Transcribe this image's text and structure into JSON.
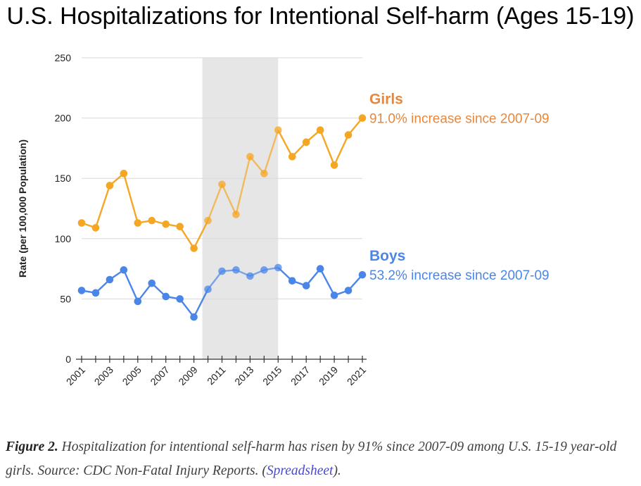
{
  "title": "U.S. Hospitalizations for Intentional Self-harm (Ages 15-19)",
  "chart_data": {
    "type": "line",
    "title": "U.S. Hospitalizations for Intentional Self-harm (Ages 15-19)",
    "xlabel": "",
    "ylabel": "Rate (per 100,000 Population)",
    "ylim": [
      0,
      250
    ],
    "y_ticks": [
      0,
      50,
      100,
      150,
      200,
      250
    ],
    "x": [
      2001,
      2002,
      2003,
      2004,
      2005,
      2006,
      2007,
      2008,
      2009,
      2010,
      2011,
      2012,
      2013,
      2014,
      2015,
      2016,
      2017,
      2018,
      2019,
      2020,
      2021
    ],
    "x_tick_labels": [
      "2001",
      "2003",
      "2005",
      "2007",
      "2009",
      "2011",
      "2013",
      "2015",
      "2017",
      "2019",
      "2021"
    ],
    "grid": "horizontal",
    "shaded_range": [
      2010,
      2015
    ],
    "series": [
      {
        "name": "Girls",
        "color": "#f5a623",
        "label_color": "#e8873a",
        "annotation": "91.0% increase since 2007-09",
        "values": [
          113,
          109,
          144,
          154,
          113,
          115,
          112,
          110,
          92,
          115,
          145,
          120,
          168,
          154,
          190,
          168,
          180,
          190,
          161,
          186,
          200
        ]
      },
      {
        "name": "Boys",
        "color": "#4a86e8",
        "label_color": "#4a86e8",
        "annotation": "53.2% increase since 2007-09",
        "values": [
          57,
          55,
          66,
          74,
          48,
          63,
          52,
          50,
          35,
          58,
          73,
          74,
          69,
          74,
          76,
          65,
          61,
          75,
          53,
          57,
          70
        ]
      }
    ]
  },
  "caption": {
    "figure_label": "Figure 2.",
    "text": " Hospitalization for intentional self-harm has risen by 91% since 2007-09 among U.S. 15-19 year-old girls. Source: CDC Non-Fatal Injury Reports. (",
    "link": "Spreadsheet",
    "end": ")."
  }
}
